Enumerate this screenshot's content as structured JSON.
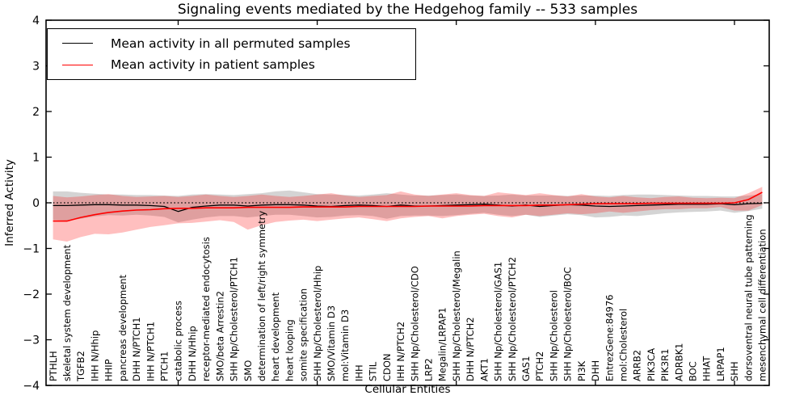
{
  "chart_data": {
    "type": "line",
    "title": "Signaling events mediated by the Hedgehog family -- 533 samples",
    "xlabel": "Cellular Entities",
    "ylabel": "Inferred Activity",
    "ylim": [
      -4,
      4
    ],
    "yticks": [
      4,
      3,
      2,
      1,
      0,
      -1,
      -2,
      -3,
      -4
    ],
    "xtick_indices": [
      9,
      19,
      29,
      39,
      49
    ],
    "grid": false,
    "legend_position": "upper left",
    "zero_line": {
      "style": "dotted",
      "y": 0,
      "color": "#000000"
    },
    "categories": [
      "PTHLH",
      "skeletal system development",
      "TGFB2",
      "IHH N/Hhip",
      "HHIP",
      "pancreas development",
      "DHH N/PTCH1",
      "IHH N/PTCH1",
      "PTCH1",
      "catabolic process",
      "DHH N/Hhip",
      "receptor-mediated endocytosis",
      "SMO/beta Arrestin2",
      "SHH Np/Cholesterol/PTCH1",
      "SMO",
      "determination of left/right symmetry",
      "heart development",
      "heart looping",
      "somite specification",
      "SHH Np/Cholesterol/Hhip",
      "SMO/Vitamin D3",
      "mol:Vitamin D3",
      "IHH",
      "STIL",
      "CDON",
      "IHH N/PTCH2",
      "SHH Np/Cholesterol/CDO",
      "LRP2",
      "Megalin/LRPAP1",
      "SHH Np/Cholesterol/Megalin",
      "DHH N/PTCH2",
      "AKT1",
      "SHH Np/Cholesterol/GAS1",
      "SHH Np/Cholesterol/PTCH2",
      "GAS1",
      "PTCH2",
      "SHH Np/Cholesterol",
      "SHH Np/Cholesterol/BOC",
      "PI3K",
      "DHH",
      "EntrezGene:84976",
      "mol:Cholesterol",
      "ARRB2",
      "PIK3CA",
      "PIK3R1",
      "ADRBK1",
      "BOC",
      "HHAT",
      "LRPAP1",
      "SHH",
      "dorsoventral neural tube patterning",
      "mesenchymal cell differentiation"
    ],
    "series": [
      {
        "name": "Mean activity in all permuted samples",
        "color": "#000000",
        "line_width": 1.3,
        "values": [
          -0.06,
          -0.06,
          -0.05,
          -0.04,
          -0.04,
          -0.05,
          -0.05,
          -0.06,
          -0.08,
          -0.19,
          -0.1,
          -0.07,
          -0.05,
          -0.05,
          -0.07,
          -0.05,
          -0.04,
          -0.04,
          -0.05,
          -0.07,
          -0.08,
          -0.06,
          -0.05,
          -0.06,
          -0.08,
          -0.05,
          -0.07,
          -0.07,
          -0.06,
          -0.05,
          -0.04,
          -0.03,
          -0.05,
          -0.07,
          -0.05,
          -0.08,
          -0.06,
          -0.04,
          -0.05,
          -0.07,
          -0.08,
          -0.07,
          -0.06,
          -0.05,
          -0.04,
          -0.03,
          -0.03,
          -0.03,
          -0.02,
          -0.04,
          -0.02,
          -0.01
        ],
        "band_color": "#999999",
        "band_opacity": 0.42,
        "band_upper": [
          0.25,
          0.25,
          0.22,
          0.2,
          0.18,
          0.18,
          0.17,
          0.17,
          0.16,
          0.15,
          0.18,
          0.19,
          0.18,
          0.17,
          0.19,
          0.21,
          0.25,
          0.27,
          0.23,
          0.19,
          0.18,
          0.17,
          0.16,
          0.18,
          0.21,
          0.18,
          0.16,
          0.16,
          0.17,
          0.18,
          0.16,
          0.15,
          0.16,
          0.18,
          0.16,
          0.16,
          0.16,
          0.15,
          0.16,
          0.16,
          0.15,
          0.17,
          0.18,
          0.18,
          0.17,
          0.16,
          0.15,
          0.15,
          0.14,
          0.14,
          0.16,
          0.19
        ],
        "band_lower": [
          -0.37,
          -0.39,
          -0.35,
          -0.3,
          -0.27,
          -0.28,
          -0.26,
          -0.28,
          -0.31,
          -0.43,
          -0.37,
          -0.32,
          -0.29,
          -0.29,
          -0.32,
          -0.29,
          -0.26,
          -0.26,
          -0.29,
          -0.32,
          -0.31,
          -0.28,
          -0.27,
          -0.29,
          -0.35,
          -0.29,
          -0.28,
          -0.28,
          -0.29,
          -0.27,
          -0.24,
          -0.22,
          -0.26,
          -0.29,
          -0.26,
          -0.31,
          -0.28,
          -0.25,
          -0.27,
          -0.32,
          -0.31,
          -0.28,
          -0.29,
          -0.26,
          -0.23,
          -0.21,
          -0.2,
          -0.19,
          -0.17,
          -0.22,
          -0.18,
          -0.13
        ]
      },
      {
        "name": "Mean activity in patient samples",
        "color": "#ff0000",
        "line_width": 1.6,
        "values": [
          -0.4,
          -0.4,
          -0.32,
          -0.26,
          -0.21,
          -0.18,
          -0.16,
          -0.15,
          -0.13,
          -0.12,
          -0.12,
          -0.11,
          -0.11,
          -0.11,
          -0.1,
          -0.1,
          -0.1,
          -0.1,
          -0.09,
          -0.09,
          -0.09,
          -0.09,
          -0.08,
          -0.08,
          -0.08,
          -0.08,
          -0.08,
          -0.07,
          -0.07,
          -0.07,
          -0.07,
          -0.06,
          -0.06,
          -0.06,
          -0.06,
          -0.05,
          -0.05,
          -0.04,
          -0.03,
          -0.02,
          -0.02,
          -0.02,
          -0.02,
          -0.01,
          -0.01,
          -0.01,
          -0.01,
          -0.01,
          -0.01,
          0.0,
          0.07,
          0.23
        ],
        "band_color": "#ff0000",
        "band_opacity": 0.25,
        "band_upper": [
          0.15,
          0.12,
          0.14,
          0.17,
          0.19,
          0.15,
          0.13,
          0.14,
          0.15,
          0.13,
          0.15,
          0.18,
          0.15,
          0.13,
          0.15,
          0.18,
          0.15,
          0.13,
          0.15,
          0.18,
          0.21,
          0.16,
          0.13,
          0.15,
          0.17,
          0.25,
          0.18,
          0.15,
          0.18,
          0.21,
          0.17,
          0.15,
          0.23,
          0.2,
          0.17,
          0.21,
          0.17,
          0.14,
          0.19,
          0.14,
          0.12,
          0.15,
          0.12,
          0.1,
          0.13,
          0.14,
          0.11,
          0.1,
          0.11,
          0.1,
          0.21,
          0.35
        ],
        "band_lower": [
          -0.8,
          -0.85,
          -0.75,
          -0.68,
          -0.69,
          -0.65,
          -0.59,
          -0.53,
          -0.49,
          -0.45,
          -0.44,
          -0.41,
          -0.38,
          -0.42,
          -0.59,
          -0.49,
          -0.42,
          -0.39,
          -0.37,
          -0.4,
          -0.37,
          -0.34,
          -0.32,
          -0.36,
          -0.4,
          -0.34,
          -0.31,
          -0.29,
          -0.34,
          -0.29,
          -0.26,
          -0.24,
          -0.29,
          -0.32,
          -0.26,
          -0.29,
          -0.26,
          -0.23,
          -0.25,
          -0.23,
          -0.19,
          -0.22,
          -0.19,
          -0.16,
          -0.14,
          -0.14,
          -0.12,
          -0.12,
          -0.09,
          -0.17,
          -0.17,
          -0.05
        ]
      }
    ]
  }
}
